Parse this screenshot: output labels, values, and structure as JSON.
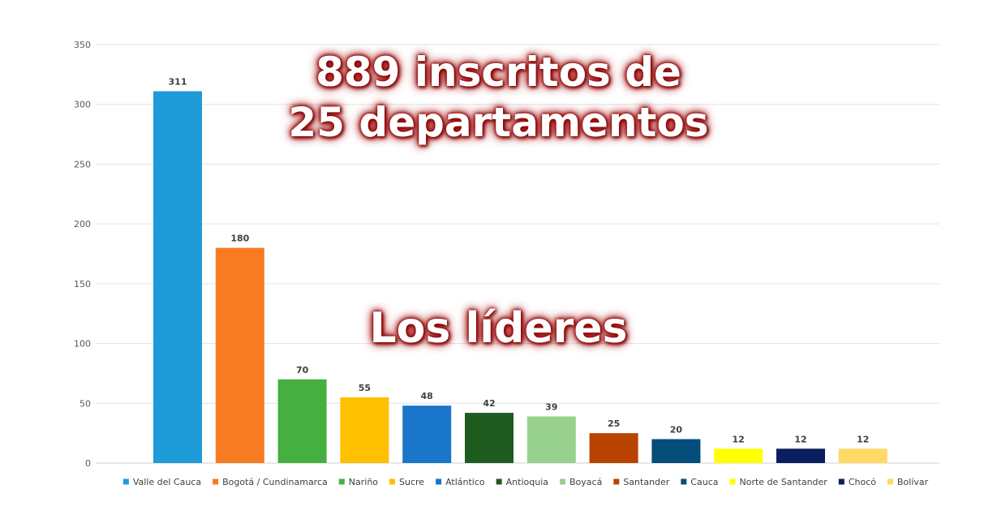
{
  "headline_lines": [
    "889 inscritos de",
    "25 departamentos"
  ],
  "subheadline": "Los líderes",
  "chart_data": {
    "type": "bar",
    "title": "",
    "xlabel": "",
    "ylabel": "",
    "ylim": [
      0,
      350
    ],
    "yticks": [
      0,
      50,
      100,
      150,
      200,
      250,
      300,
      350
    ],
    "grid": true,
    "legend_position": "bottom",
    "series": [
      {
        "name": "Valle del Cauca",
        "value": 311,
        "color": "#1f9bd9"
      },
      {
        "name": "Bogotá / Cundinamarca",
        "value": 180,
        "color": "#f77b22"
      },
      {
        "name": "Nariño",
        "value": 70,
        "color": "#45b03f"
      },
      {
        "name": "Sucre",
        "value": 55,
        "color": "#ffc000"
      },
      {
        "name": "Atlántico",
        "value": 48,
        "color": "#1976c8"
      },
      {
        "name": "Antioquia",
        "value": 42,
        "color": "#1e5b1e"
      },
      {
        "name": "Boyacá",
        "value": 39,
        "color": "#98d18e"
      },
      {
        "name": "Santander",
        "value": 25,
        "color": "#b84400"
      },
      {
        "name": "Cauca",
        "value": 20,
        "color": "#054d7a"
      },
      {
        "name": "Norte de Santander",
        "value": 12,
        "color": "#ffff00"
      },
      {
        "name": "Chocó",
        "value": 12,
        "color": "#0a1e5e"
      },
      {
        "name": "Bolívar",
        "value": 12,
        "color": "#ffd966"
      }
    ]
  }
}
